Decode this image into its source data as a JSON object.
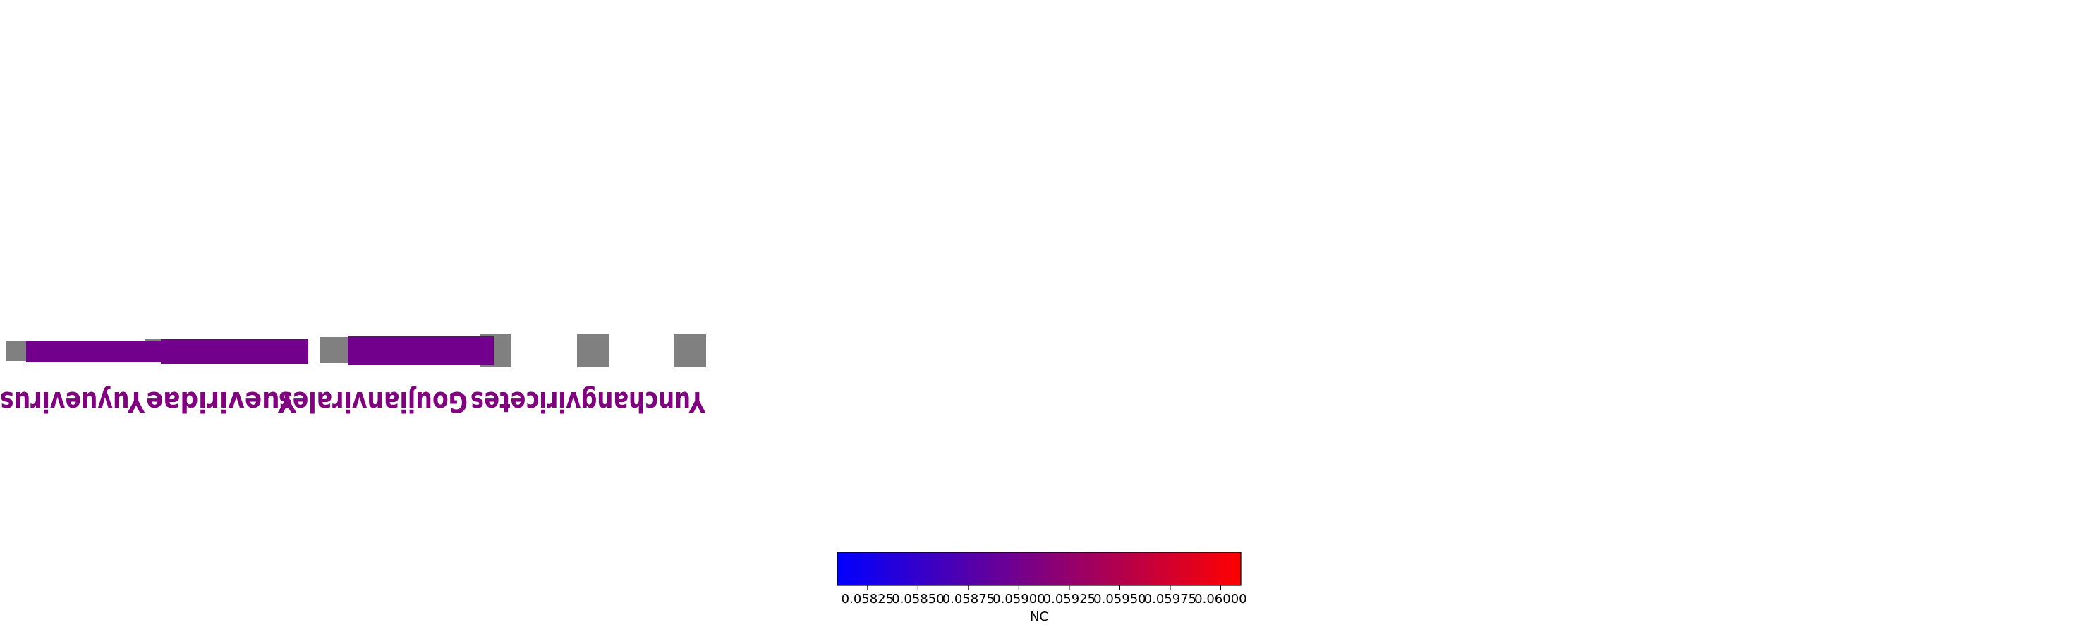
{
  "chart_data": {
    "type": "heatmap",
    "description_free": true,
    "ranks": [
      {
        "name": "Yunchangviricetes",
        "value": null
      },
      {
        "name": "Goujianvirales",
        "value": 0.059
      },
      {
        "name": "Yueviridae",
        "value": 0.059
      },
      {
        "name": "Yuyuevirus",
        "value": 0.059
      }
    ],
    "colorbar": {
      "label": "NC",
      "min": 0.0581,
      "max": 0.0601,
      "ticks": [
        "0.05825",
        "0.05850",
        "0.05875",
        "0.05900",
        "0.05925",
        "0.05950",
        "0.05975",
        "0.06000"
      ],
      "tick_values": [
        0.05825,
        0.0585,
        0.05875,
        0.059,
        0.05925,
        0.0595,
        0.05975,
        0.06
      ],
      "color_low": "#0000ff",
      "color_mid": "#800080",
      "color_high": "#ff0000"
    },
    "colors": {
      "missing": "#808080",
      "label": "#800080"
    }
  }
}
